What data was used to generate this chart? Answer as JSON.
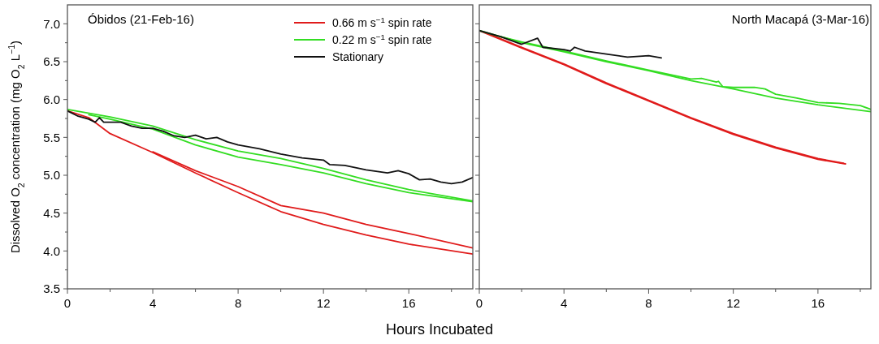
{
  "chart_data": [
    {
      "type": "line",
      "title": "Óbidos (21-Feb-16)",
      "xlabel": "Hours Incubated",
      "ylabel": "Dissolved O$_{2}$ concentration (mg O$_{2}$ L$^{−1}$)",
      "xlim": [
        0,
        19
      ],
      "ylim": [
        3.5,
        7.25
      ],
      "xticks": [
        0,
        {
          "value": 2,
          "label": null
        },
        4,
        {
          "value": 6,
          "label": null
        },
        8,
        {
          "value": 10,
          "label": null
        },
        12,
        {
          "value": 14,
          "label": null
        },
        16,
        {
          "value": 18,
          "label": null
        }
      ],
      "yticks": [
        {
          "value": 3.5,
          "label": "3.5"
        },
        {
          "value": 3.75,
          "label": null
        },
        {
          "value": 4.0,
          "label": "4.0"
        },
        {
          "value": 4.25,
          "label": null
        },
        {
          "value": 4.5,
          "label": "4.5"
        },
        {
          "value": 4.75,
          "label": null
        },
        {
          "value": 5.0,
          "label": "5.0"
        },
        {
          "value": 5.25,
          "label": null
        },
        {
          "value": 5.5,
          "label": "5.5"
        },
        {
          "value": 5.75,
          "label": null
        },
        {
          "value": 6.0,
          "label": "6.0"
        },
        {
          "value": 6.25,
          "label": null
        },
        {
          "value": 6.5,
          "label": "6.5"
        },
        {
          "value": 6.75,
          "label": null
        },
        {
          "value": 7.0,
          "label": "7.0"
        }
      ],
      "legend": "top right",
      "line_style": "solid",
      "grid": false,
      "series": [
        {
          "name": "0.66 m s$^{−1}$ spin rate",
          "color": "#e01b1b",
          "x": [
            0,
            1,
            2,
            4,
            6,
            8,
            10,
            12,
            14,
            16,
            19
          ],
          "values": [
            5.85,
            5.76,
            5.55,
            5.3,
            5.03,
            4.77,
            4.52,
            4.35,
            4.21,
            4.09,
            3.96
          ]
        },
        {
          "color": "#e01b1b",
          "x": [
            4,
            6,
            8,
            10,
            12,
            14,
            16,
            19
          ],
          "values": [
            5.31,
            5.06,
            4.85,
            4.6,
            4.5,
            4.35,
            4.23,
            4.04
          ]
        },
        {
          "name": "0.22 m s$^{−1}$ spin rate",
          "color": "#33dd22",
          "x": [
            0,
            2,
            4,
            6,
            8,
            10,
            12,
            14,
            16,
            19
          ],
          "values": [
            5.87,
            5.77,
            5.65,
            5.47,
            5.32,
            5.22,
            5.09,
            4.94,
            4.81,
            4.66
          ]
        },
        {
          "color": "#33dd22",
          "x": [
            1,
            2,
            4,
            6,
            8,
            10,
            12,
            14,
            16,
            19
          ],
          "values": [
            5.8,
            5.74,
            5.61,
            5.4,
            5.24,
            5.14,
            5.03,
            4.89,
            4.77,
            4.65
          ]
        },
        {
          "name": "Stationary",
          "color": "#111111",
          "x": [
            0,
            0.5,
            1,
            1.3,
            1.5,
            1.7,
            2.5,
            3,
            3.5,
            4,
            4.5,
            5,
            5.5,
            6,
            6.5,
            7,
            7.5,
            8,
            9,
            10,
            11,
            12,
            12.3,
            13,
            14,
            15,
            15.5,
            16,
            16.5,
            17,
            17.5,
            18,
            18.5,
            19
          ],
          "values": [
            5.85,
            5.78,
            5.74,
            5.7,
            5.76,
            5.7,
            5.7,
            5.65,
            5.62,
            5.62,
            5.58,
            5.52,
            5.5,
            5.53,
            5.48,
            5.5,
            5.44,
            5.4,
            5.35,
            5.28,
            5.23,
            5.2,
            5.14,
            5.13,
            5.07,
            5.03,
            5.06,
            5.02,
            4.94,
            4.95,
            4.91,
            4.89,
            4.91,
            4.97
          ]
        }
      ]
    },
    {
      "type": "line",
      "title": "North Macapá (3-Mar-16)",
      "xlim": [
        0,
        18.5
      ],
      "ylim": [
        3.5,
        7.25
      ],
      "tick_labels": "x",
      "line_style": "solid",
      "grid": false,
      "xticks": [
        0,
        {
          "value": 2,
          "label": null
        },
        4,
        {
          "value": 6,
          "label": null
        },
        8,
        {
          "value": 10,
          "label": null
        },
        12,
        {
          "value": 14,
          "label": null
        },
        16,
        {
          "value": 18,
          "label": null
        }
      ],
      "yticks": [
        {
          "value": 3.5,
          "label": null
        },
        {
          "value": 3.75,
          "label": null
        },
        {
          "value": 4.0,
          "label": null
        },
        {
          "value": 4.25,
          "label": null
        },
        {
          "value": 4.5,
          "label": null
        },
        {
          "value": 4.75,
          "label": null
        },
        {
          "value": 5.0,
          "label": null
        },
        {
          "value": 5.25,
          "label": null
        },
        {
          "value": 5.5,
          "label": null
        },
        {
          "value": 5.75,
          "label": null
        },
        {
          "value": 6.0,
          "label": null
        },
        {
          "value": 6.25,
          "label": null
        },
        {
          "value": 6.5,
          "label": null
        },
        {
          "value": 6.75,
          "label": null
        },
        {
          "value": 7.0,
          "label": null
        }
      ],
      "series": [
        {
          "color": "#e01b1b",
          "x": [
            0,
            2,
            4,
            6,
            8,
            10,
            12,
            14,
            16,
            17.3
          ],
          "values": [
            6.91,
            6.68,
            6.46,
            6.21,
            5.98,
            5.75,
            5.54,
            5.36,
            5.21,
            5.15
          ]
        },
        {
          "color": "#e01b1b",
          "x": [
            0.5,
            2,
            4,
            6,
            8,
            10,
            12,
            14,
            16,
            17.2
          ],
          "values": [
            6.86,
            6.69,
            6.47,
            6.22,
            5.99,
            5.76,
            5.55,
            5.37,
            5.22,
            5.16
          ]
        },
        {
          "color": "#33dd22",
          "x": [
            0,
            2,
            4,
            6,
            8,
            10,
            12,
            14,
            16,
            18.5
          ],
          "values": [
            6.91,
            6.75,
            6.63,
            6.5,
            6.38,
            6.25,
            6.14,
            6.02,
            5.93,
            5.84
          ]
        },
        {
          "color": "#33dd22",
          "x": [
            1,
            2,
            4,
            6,
            8,
            10,
            10.5,
            11.2,
            11.3,
            11.5,
            12,
            13,
            13.5,
            14,
            15,
            16,
            17,
            18,
            18.5
          ],
          "values": [
            6.83,
            6.76,
            6.64,
            6.51,
            6.39,
            6.27,
            6.28,
            6.23,
            6.24,
            6.17,
            6.16,
            6.16,
            6.14,
            6.07,
            6.02,
            5.96,
            5.95,
            5.92,
            5.87
          ]
        },
        {
          "color": "#111111",
          "x": [
            0,
            1,
            2,
            2.75,
            3,
            4,
            4.3,
            4.5,
            5,
            6,
            7,
            8,
            8.6
          ],
          "values": [
            6.91,
            6.83,
            6.73,
            6.81,
            6.69,
            6.66,
            6.64,
            6.69,
            6.64,
            6.6,
            6.56,
            6.58,
            6.55
          ]
        }
      ]
    }
  ]
}
